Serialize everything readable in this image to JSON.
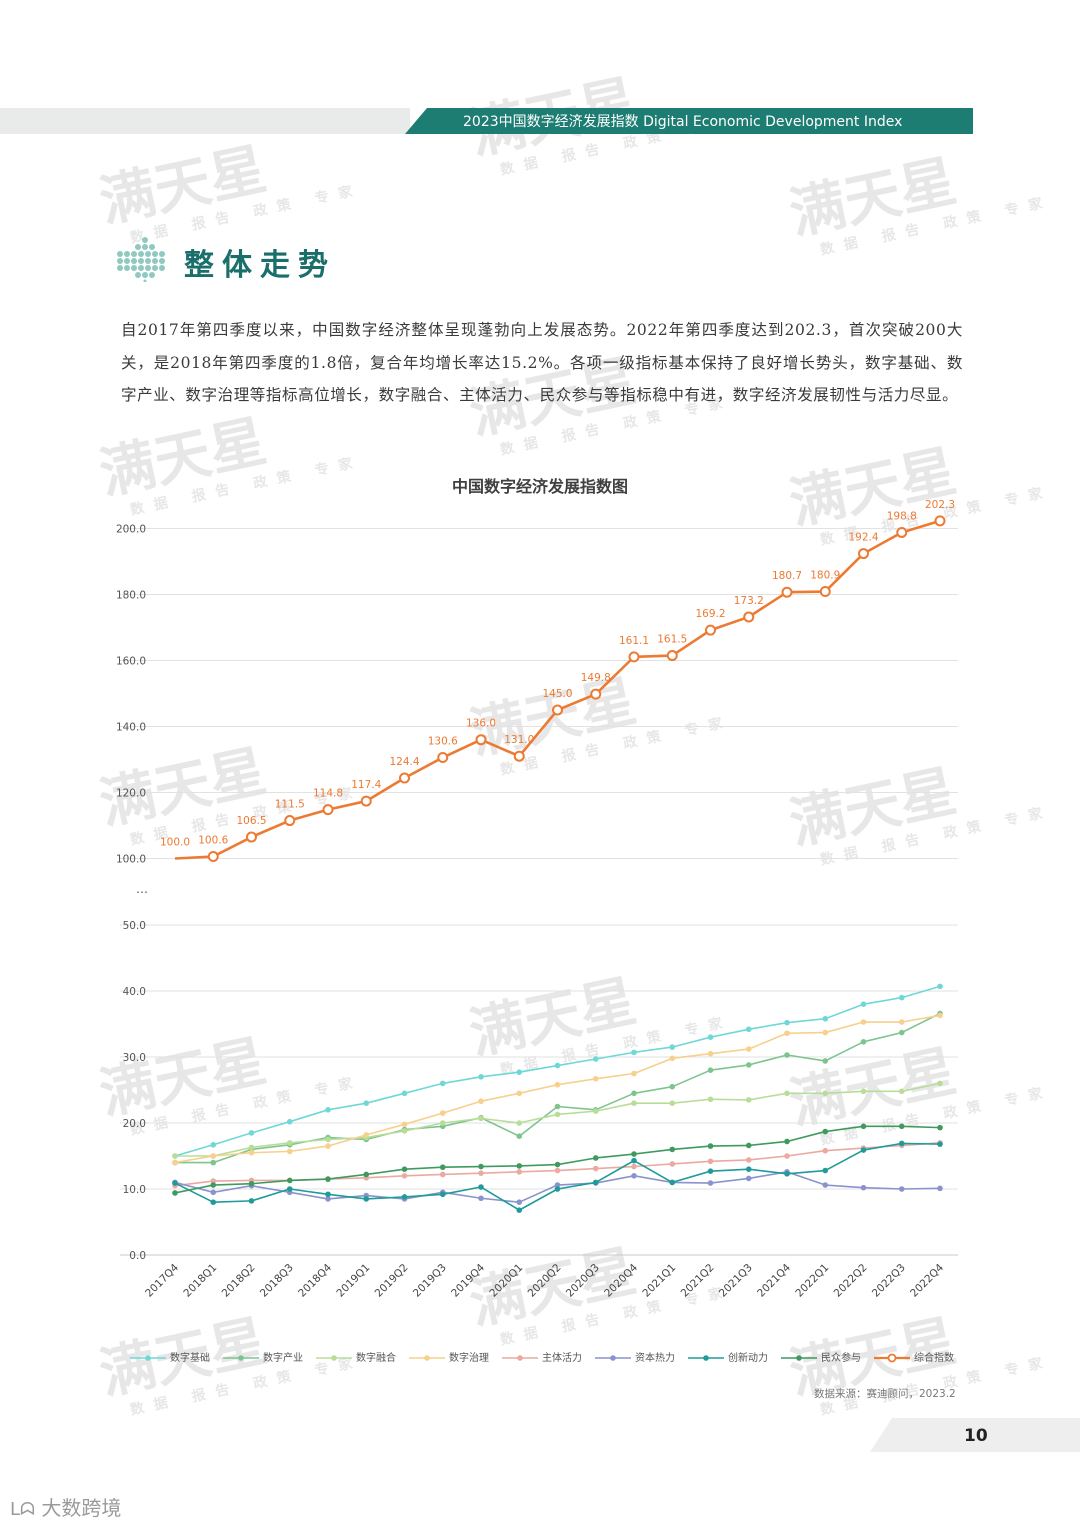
{
  "header": {
    "title": "2023中国数字经济发展指数 Digital Economic Development Index"
  },
  "section": {
    "title": "整体走势"
  },
  "paragraph": "自2017年第四季度以来，中国数字经济整体呈现蓬勃向上发展态势。2022年第四季度达到202.3，首次突破200大关，是2018年第四季度的1.8倍，复合年均增长率达15.2%。各项一级指标基本保持了良好增长势头，数字基础、数字产业、数字治理等指标高位增长，数字融合、主体活力、民众参与等指标稳中有进，数字经济发展韧性与活力尽显。",
  "watermark": {
    "brand": "满天星",
    "tagline": "数据 报告 政策 专家"
  },
  "source": "数据来源：赛迪顾问，2023.2",
  "page_number": "10",
  "bottom_watermark": "大数跨境",
  "colors": {
    "teal": "#1d7d73",
    "orange": "#ed7a33"
  },
  "chart_data": {
    "type": "line",
    "title": "中国数字经济发展指数图",
    "axis_break": "…",
    "y_ticks_lower": [
      "0.0",
      "10.0",
      "20.0",
      "30.0",
      "40.0",
      "50.0"
    ],
    "y_ticks_upper": [
      "100.0",
      "120.0",
      "140.0",
      "160.0",
      "180.0",
      "200.0"
    ],
    "grid": true,
    "legend_position": "bottom",
    "categories": [
      "2017Q4",
      "2018Q1",
      "2018Q2",
      "2018Q3",
      "2018Q4",
      "2019Q1",
      "2019Q2",
      "2019Q3",
      "2019Q4",
      "2020Q1",
      "2020Q2",
      "2020Q3",
      "2020Q4",
      "2021Q1",
      "2021Q2",
      "2021Q3",
      "2021Q4",
      "2022Q1",
      "2022Q2",
      "2022Q3",
      "2022Q4"
    ],
    "series": [
      {
        "name": "数字基础",
        "color": "#6fd8d6",
        "values": [
          15.0,
          16.7,
          18.5,
          20.2,
          22.0,
          23.0,
          24.5,
          26.0,
          27.0,
          27.7,
          28.7,
          29.7,
          30.7,
          31.5,
          33.0,
          34.2,
          35.2,
          35.8,
          38.0,
          39.0,
          40.7
        ]
      },
      {
        "name": "数字产业",
        "color": "#7fc48f",
        "values": [
          14.0,
          14.0,
          16.0,
          16.7,
          17.8,
          17.5,
          19.0,
          19.5,
          20.8,
          18.0,
          22.5,
          22.0,
          24.5,
          25.5,
          28.0,
          28.8,
          30.3,
          29.4,
          32.3,
          33.7,
          36.6
        ]
      },
      {
        "name": "数字融合",
        "color": "#b8dd98",
        "values": [
          15.0,
          15.0,
          16.3,
          17.0,
          17.5,
          17.8,
          18.8,
          20.0,
          20.7,
          20.0,
          21.3,
          21.8,
          23.0,
          23.0,
          23.6,
          23.5,
          24.5,
          24.5,
          24.8,
          24.8,
          26.0
        ]
      },
      {
        "name": "数字治理",
        "color": "#f6d08c",
        "values": [
          14.0,
          15.0,
          15.5,
          15.7,
          16.5,
          18.2,
          19.8,
          21.5,
          23.3,
          24.5,
          25.8,
          26.7,
          27.5,
          29.8,
          30.5,
          31.2,
          33.6,
          33.7,
          35.3,
          35.3,
          36.3
        ]
      },
      {
        "name": "主体活力",
        "color": "#eba9a2",
        "values": [
          10.5,
          11.2,
          11.3,
          11.3,
          11.5,
          11.7,
          12.0,
          12.2,
          12.4,
          12.6,
          12.8,
          13.1,
          13.4,
          13.8,
          14.2,
          14.4,
          15.0,
          15.8,
          16.2,
          16.6,
          17.0
        ]
      },
      {
        "name": "资本热力",
        "color": "#8a93cc",
        "values": [
          11.0,
          9.5,
          10.5,
          9.5,
          8.5,
          9.0,
          8.5,
          9.5,
          8.6,
          8.0,
          10.6,
          10.9,
          12.0,
          11.0,
          10.9,
          11.6,
          12.6,
          10.6,
          10.2,
          10.0,
          10.1
        ]
      },
      {
        "name": "创新动力",
        "color": "#1f9b99",
        "values": [
          10.9,
          8.0,
          8.2,
          10.0,
          9.2,
          8.5,
          8.8,
          9.2,
          10.3,
          6.8,
          10.0,
          11.0,
          14.3,
          11.0,
          12.7,
          13.0,
          12.3,
          12.8,
          15.9,
          16.9,
          16.8
        ]
      },
      {
        "name": "民众参与",
        "color": "#3f9a5f",
        "values": [
          9.4,
          10.6,
          10.8,
          11.3,
          11.5,
          12.2,
          13.0,
          13.3,
          13.4,
          13.5,
          13.7,
          14.7,
          15.3,
          16.0,
          16.5,
          16.6,
          17.2,
          18.7,
          19.5,
          19.5,
          19.3
        ]
      },
      {
        "name": "综合指数",
        "color": "#ed7a33",
        "values": [
          100.0,
          100.6,
          106.5,
          111.5,
          114.8,
          117.4,
          124.4,
          130.6,
          136.0,
          131.0,
          145.0,
          149.8,
          161.1,
          161.5,
          169.2,
          173.2,
          180.7,
          180.9,
          192.4,
          198.8,
          202.3
        ],
        "labels": [
          "100.0",
          "100.6",
          "106.5",
          "111.5",
          "114.8",
          "117.4",
          "124.4",
          "130.6",
          "136.0",
          "131.0",
          "145.0",
          "149.8",
          "161.1",
          "161.5",
          "169.2",
          "173.2",
          "180.7",
          "180.9",
          "192.4",
          "198.8",
          "202.3"
        ]
      }
    ]
  }
}
